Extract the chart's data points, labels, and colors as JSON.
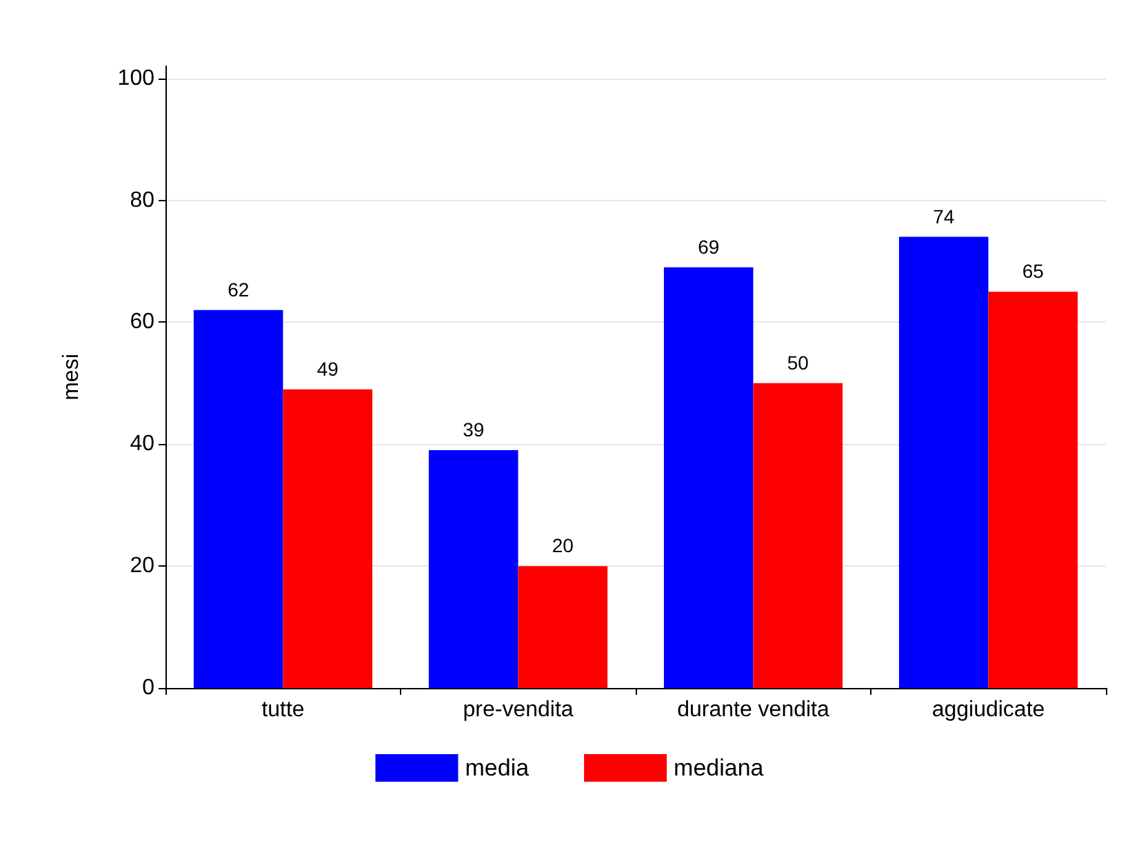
{
  "chart_data": {
    "type": "bar",
    "ylabel": "mesi",
    "categories": [
      "tutte",
      "pre-vendita",
      "durante vendita",
      "aggiudicate"
    ],
    "series": [
      {
        "name": "media",
        "color": "#0000ff",
        "values": [
          62,
          39,
          69,
          74
        ]
      },
      {
        "name": "mediana",
        "color": "#ff0000",
        "values": [
          49,
          20,
          50,
          65
        ]
      }
    ],
    "ylim": [
      0,
      102
    ],
    "yticks": [
      0,
      20,
      40,
      60,
      80,
      100
    ],
    "grid": "y",
    "legend": "bottom",
    "data_labels": true
  }
}
